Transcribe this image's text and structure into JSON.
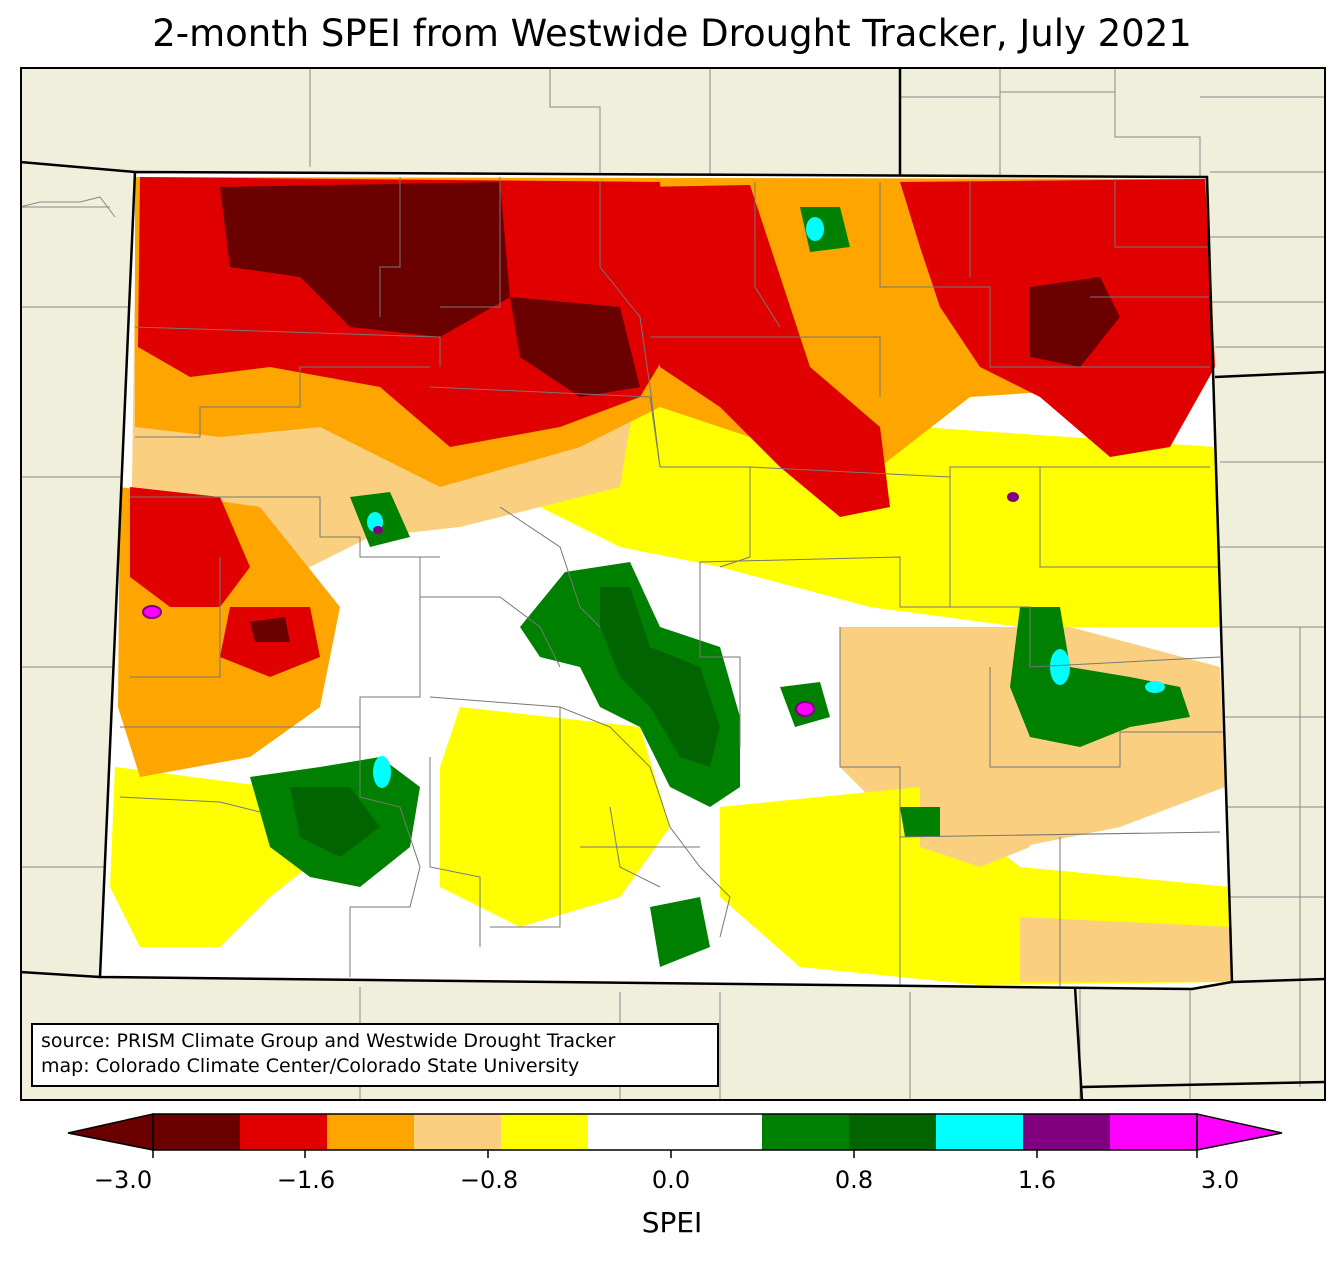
{
  "title": "2-month SPEI from Westwide Drought Tracker, July 2021",
  "source_lines": [
    "source: PRISM Climate Group and Westwide Drought Tracker",
    "map: Colorado Climate Center/Colorado State University"
  ],
  "colorbar": {
    "label": "SPEI",
    "tick_labels": [
      "−3.0",
      "−1.6",
      "−0.8",
      "0.0",
      "0.8",
      "1.6",
      "3.0"
    ],
    "min": -3.0,
    "max": 3.0,
    "extend": "both",
    "colors": [
      "#6b0000",
      "#e00000",
      "#ffa500",
      "#fad080",
      "#ffff00",
      "#ffffff",
      "#ffffff",
      "#008000",
      "#006400",
      "#00ffff",
      "#800080",
      "#ff00ff"
    ]
  },
  "map": {
    "region": "Colorado",
    "background_color": "#efefdc",
    "colors": {
      "severe_dry": "#6b0000",
      "very_dry": "#e00000",
      "moderately_dry": "#ffa500",
      "slightly_dry": "#fad080",
      "abnormally_dry": "#ffff00",
      "near_normal": "#ffffff",
      "wet": "#008000",
      "very_wet": "#006400",
      "extremely_wet": "#00ffff",
      "exceptionally_wet": "#800080",
      "record_wet": "#ff00ff"
    }
  }
}
